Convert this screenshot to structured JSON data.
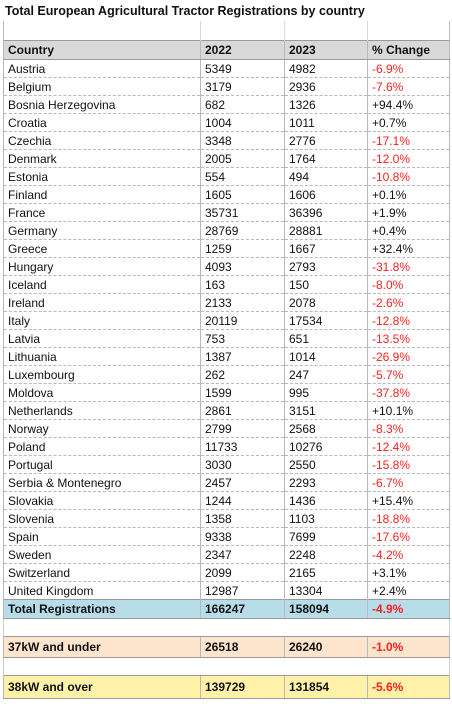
{
  "title": "Total European Agricultural Tractor Registrations by country",
  "colors": {
    "header_bg": "#d9d9d9",
    "negative": "#ff1f1f",
    "total_bg": "#b7dde9",
    "under37_bg": "#fce4cd",
    "over38_bg": "#fff2a8"
  },
  "header": {
    "country": "Country",
    "y2022": "2022",
    "y2023": "2023",
    "change": "% Change"
  },
  "rows": [
    {
      "country": "Austria",
      "y2022": "5349",
      "y2023": "4982",
      "change": "-6.9%"
    },
    {
      "country": "Belgium",
      "y2022": "3179",
      "y2023": "2936",
      "change": "-7.6%"
    },
    {
      "country": "Bosnia Herzegovina",
      "y2022": "682",
      "y2023": "1326",
      "change": "+94.4%"
    },
    {
      "country": "Croatia",
      "y2022": "1004",
      "y2023": "1011",
      "change": "+0.7%"
    },
    {
      "country": "Czechia",
      "y2022": "3348",
      "y2023": "2776",
      "change": "-17.1%"
    },
    {
      "country": "Denmark",
      "y2022": "2005",
      "y2023": "1764",
      "change": "-12.0%"
    },
    {
      "country": "Estonia",
      "y2022": "554",
      "y2023": "494",
      "change": "-10.8%"
    },
    {
      "country": "Finland",
      "y2022": "1605",
      "y2023": "1606",
      "change": "+0.1%"
    },
    {
      "country": "France",
      "y2022": "35731",
      "y2023": "36396",
      "change": "+1.9%"
    },
    {
      "country": "Germany",
      "y2022": "28769",
      "y2023": "28881",
      "change": "+0.4%"
    },
    {
      "country": "Greece",
      "y2022": "1259",
      "y2023": "1667",
      "change": "+32.4%"
    },
    {
      "country": "Hungary",
      "y2022": "4093",
      "y2023": "2793",
      "change": "-31.8%"
    },
    {
      "country": "Iceland",
      "y2022": "163",
      "y2023": "150",
      "change": "-8.0%"
    },
    {
      "country": "Ireland",
      "y2022": "2133",
      "y2023": "2078",
      "change": "-2.6%"
    },
    {
      "country": "Italy",
      "y2022": "20119",
      "y2023": "17534",
      "change": "-12.8%"
    },
    {
      "country": "Latvia",
      "y2022": "753",
      "y2023": "651",
      "change": "-13.5%"
    },
    {
      "country": "Lithuania",
      "y2022": "1387",
      "y2023": "1014",
      "change": "-26.9%"
    },
    {
      "country": "Luxembourg",
      "y2022": "262",
      "y2023": "247",
      "change": "-5.7%"
    },
    {
      "country": "Moldova",
      "y2022": "1599",
      "y2023": "995",
      "change": "-37.8%"
    },
    {
      "country": "Netherlands",
      "y2022": "2861",
      "y2023": "3151",
      "change": "+10.1%"
    },
    {
      "country": "Norway",
      "y2022": "2799",
      "y2023": "2568",
      "change": "-8.3%"
    },
    {
      "country": "Poland",
      "y2022": "11733",
      "y2023": "10276",
      "change": "-12.4%"
    },
    {
      "country": "Portugal",
      "y2022": "3030",
      "y2023": "2550",
      "change": "-15.8%"
    },
    {
      "country": "Serbia & Montenegro",
      "y2022": "2457",
      "y2023": "2293",
      "change": "-6.7%"
    },
    {
      "country": "Slovakia",
      "y2022": "1244",
      "y2023": "1436",
      "change": "+15.4%"
    },
    {
      "country": "Slovenia",
      "y2022": "1358",
      "y2023": "1103",
      "change": "-18.8%"
    },
    {
      "country": "Spain",
      "y2022": "9338",
      "y2023": "7699",
      "change": "-17.6%"
    },
    {
      "country": "Sweden",
      "y2022": "2347",
      "y2023": "2248",
      "change": "-4.2%"
    },
    {
      "country": "Switzerland",
      "y2022": "2099",
      "y2023": "2165",
      "change": "+3.1%"
    },
    {
      "country": "United Kingdom",
      "y2022": "12987",
      "y2023": "13304",
      "change": "+2.4%"
    }
  ],
  "total": {
    "label": "Total Registrations",
    "y2022": "166247",
    "y2023": "158094",
    "change": "-4.9%"
  },
  "under37": {
    "label": "37kW and under",
    "y2022": "26518",
    "y2023": "26240",
    "change": "-1.0%"
  },
  "over38": {
    "label": "38kW and over",
    "y2022": "139729",
    "y2023": "131854",
    "change": "-5.6%"
  }
}
